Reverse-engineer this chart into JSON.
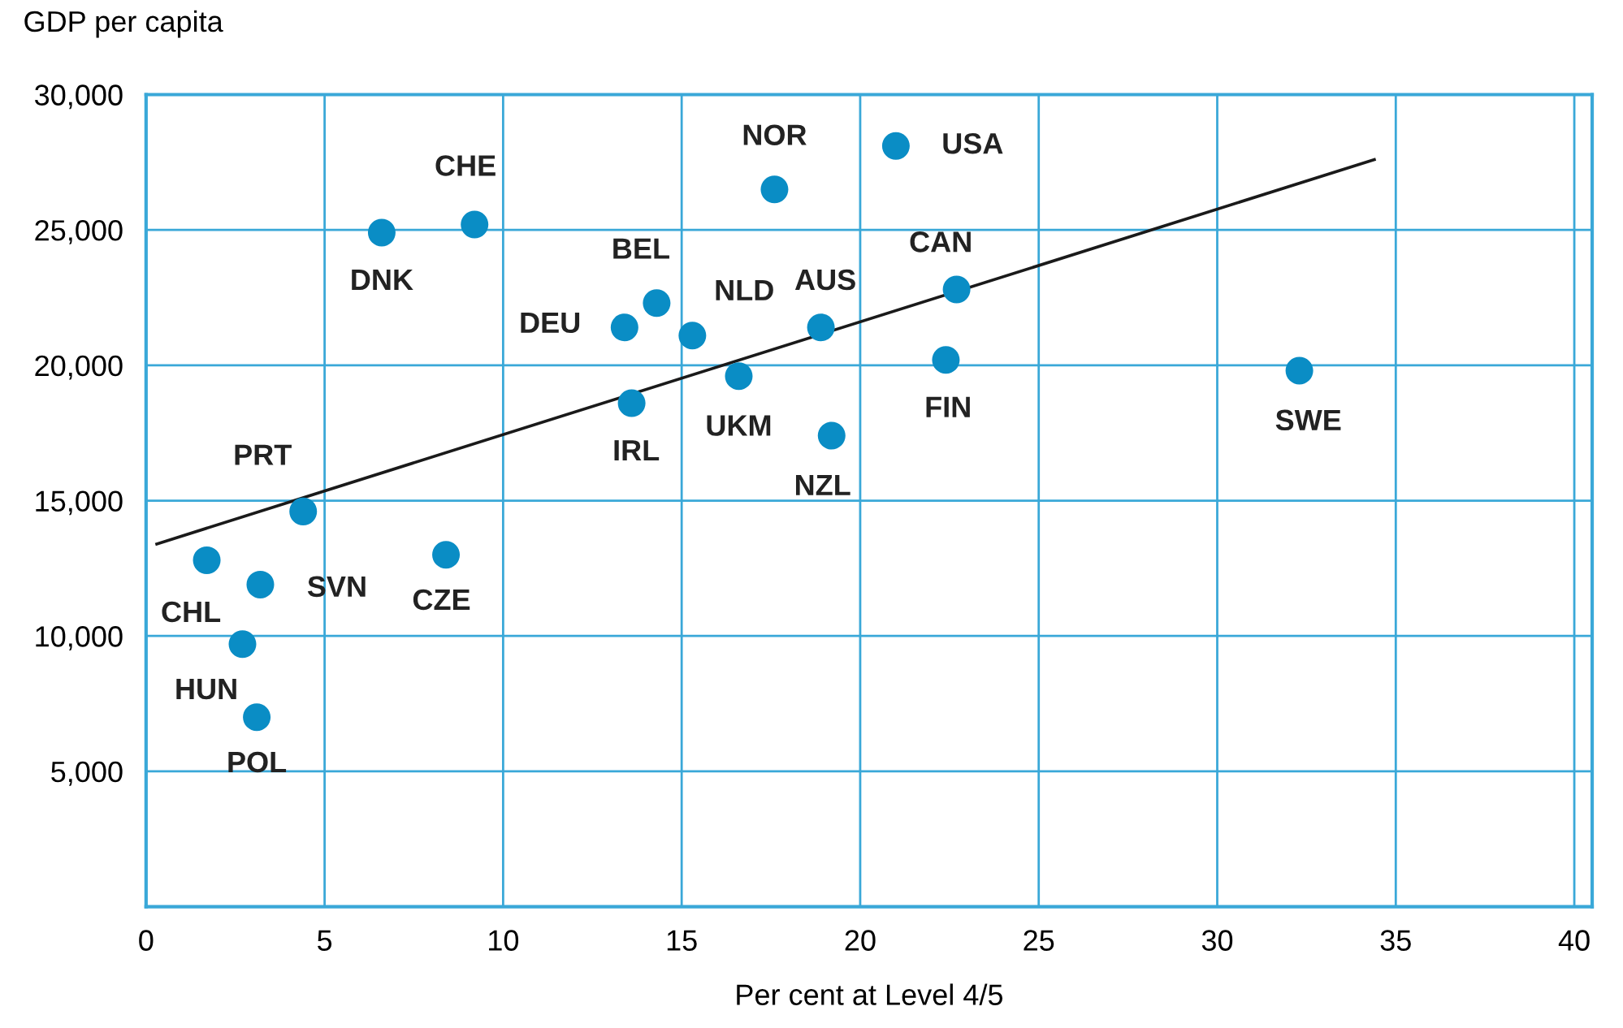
{
  "chart_data": {
    "type": "scatter",
    "ylabel": "GDP per capita",
    "xlabel": "Per cent at Level 4/5",
    "xlim": [
      0,
      40.5
    ],
    "ylim": [
      0,
      30000
    ],
    "xticks": [
      0,
      5,
      10,
      15,
      20,
      25,
      30,
      35,
      40
    ],
    "yticks": [
      {
        "value": 0,
        "label": null
      },
      {
        "value": 5000,
        "label": "5,000"
      },
      {
        "value": 10000,
        "label": "10,000"
      },
      {
        "value": 15000,
        "label": "15,000"
      },
      {
        "value": 20000,
        "label": "20,000"
      },
      {
        "value": 25000,
        "label": "25,000"
      },
      {
        "value": 30000,
        "label": "30,000"
      }
    ],
    "grid": true,
    "marker": "circle",
    "series": [
      {
        "color": "#0a8dc5",
        "x": [
          6.6,
          9.2,
          17.6,
          21.0,
          14.3,
          13.4,
          15.3,
          18.9,
          22.7,
          22.4,
          32.3,
          13.6,
          16.6,
          19.2,
          4.4,
          1.7,
          3.2,
          8.4,
          2.7,
          3.1
        ],
        "values": [
          24900,
          25200,
          26500,
          28100,
          22300,
          21400,
          21100,
          21400,
          22800,
          20200,
          19800,
          18600,
          19600,
          17400,
          14600,
          12800,
          11900,
          13000,
          9700,
          7000
        ]
      },
      {
        "type": "line",
        "marker": "none",
        "color": "#1a1a1a",
        "x": [
          0.3,
          34.4
        ],
        "values": [
          13400,
          27600
        ]
      }
    ],
    "annotations": [
      {
        "text": "DNK",
        "x": 6.6,
        "y": 24900
      },
      {
        "text": "CHE",
        "x": 9.2,
        "y": 25200
      },
      {
        "text": "NOR",
        "x": 17.6,
        "y": 26500
      },
      {
        "text": "USA",
        "x": 21.0,
        "y": 28100
      },
      {
        "text": "BEL",
        "x": 14.3,
        "y": 22300
      },
      {
        "text": "DEU",
        "x": 13.4,
        "y": 21400
      },
      {
        "text": "NLD",
        "x": 15.3,
        "y": 21100
      },
      {
        "text": "AUS",
        "x": 18.9,
        "y": 21400
      },
      {
        "text": "CAN",
        "x": 22.7,
        "y": 22800
      },
      {
        "text": "FIN",
        "x": 22.4,
        "y": 20200
      },
      {
        "text": "SWE",
        "x": 32.3,
        "y": 19800
      },
      {
        "text": "IRL",
        "x": 13.6,
        "y": 18600
      },
      {
        "text": "UKM",
        "x": 16.6,
        "y": 19600
      },
      {
        "text": "NZL",
        "x": 19.2,
        "y": 17400
      },
      {
        "text": "PRT",
        "x": 4.4,
        "y": 14600
      },
      {
        "text": "CHL",
        "x": 1.7,
        "y": 12800
      },
      {
        "text": "SVN",
        "x": 3.2,
        "y": 11900
      },
      {
        "text": "CZE",
        "x": 8.4,
        "y": 13000
      },
      {
        "text": "HUN",
        "x": 2.7,
        "y": 9700
      },
      {
        "text": "POL",
        "x": 3.1,
        "y": 7000
      }
    ]
  }
}
